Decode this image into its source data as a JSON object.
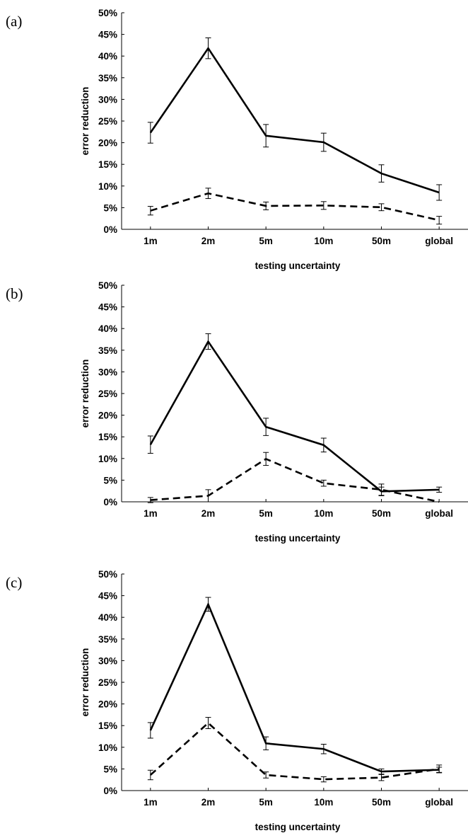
{
  "chart_data": [
    {
      "type": "line",
      "panel_label": "(a)",
      "categories": [
        "1m",
        "2m",
        "5m",
        "10m",
        "50m",
        "global"
      ],
      "xlabel": "testing uncertainty",
      "ylabel": "error reduction",
      "ylim": [
        0,
        50
      ],
      "yticks": [
        "0%",
        "5%",
        "10%",
        "15%",
        "20%",
        "25%",
        "30%",
        "35%",
        "40%",
        "45%",
        "50%"
      ],
      "series": [
        {
          "style": "solid",
          "values": [
            22.3,
            41.8,
            21.6,
            20.1,
            12.9,
            8.5
          ],
          "errors": [
            2.4,
            2.4,
            2.6,
            2.1,
            2.0,
            1.8
          ]
        },
        {
          "style": "dashed",
          "values": [
            4.3,
            8.3,
            5.4,
            5.5,
            5.1,
            2.1
          ],
          "errors": [
            1.0,
            1.2,
            0.9,
            0.9,
            0.8,
            0.9
          ]
        }
      ]
    },
    {
      "type": "line",
      "panel_label": "(b)",
      "categories": [
        "1m",
        "2m",
        "5m",
        "10m",
        "50m",
        "global"
      ],
      "xlabel": "testing uncertainty",
      "ylabel": "error reduction",
      "ylim": [
        0,
        50
      ],
      "yticks": [
        "0%",
        "5%",
        "10%",
        "15%",
        "20%",
        "25%",
        "30%",
        "35%",
        "40%",
        "45%",
        "50%"
      ],
      "series": [
        {
          "style": "solid",
          "values": [
            13.2,
            37.0,
            17.3,
            13.1,
            2.4,
            2.8
          ],
          "errors": [
            2.0,
            1.8,
            2.0,
            1.6,
            1.0,
            0.6
          ]
        },
        {
          "style": "dashed",
          "values": [
            0.4,
            1.4,
            9.9,
            4.3,
            2.8,
            0.0
          ],
          "errors": [
            0.6,
            1.4,
            1.5,
            0.7,
            1.3,
            0.0
          ]
        }
      ]
    },
    {
      "type": "line",
      "panel_label": "(c)",
      "categories": [
        "1m",
        "2m",
        "5m",
        "10m",
        "50m",
        "global"
      ],
      "xlabel": "testing uncertainty",
      "ylabel": "error reduction",
      "ylim": [
        0,
        50
      ],
      "yticks": [
        "0%",
        "5%",
        "10%",
        "15%",
        "20%",
        "25%",
        "30%",
        "35%",
        "40%",
        "45%",
        "50%"
      ],
      "series": [
        {
          "style": "solid",
          "values": [
            13.9,
            43.0,
            10.9,
            9.6,
            4.4,
            4.8
          ],
          "errors": [
            1.8,
            1.6,
            1.5,
            1.1,
            0.6,
            0.6
          ]
        },
        {
          "style": "dashed",
          "values": [
            3.6,
            15.6,
            3.6,
            2.6,
            3.0,
            5.0
          ],
          "errors": [
            1.1,
            1.3,
            0.7,
            0.6,
            0.7,
            0.9
          ]
        }
      ]
    }
  ]
}
